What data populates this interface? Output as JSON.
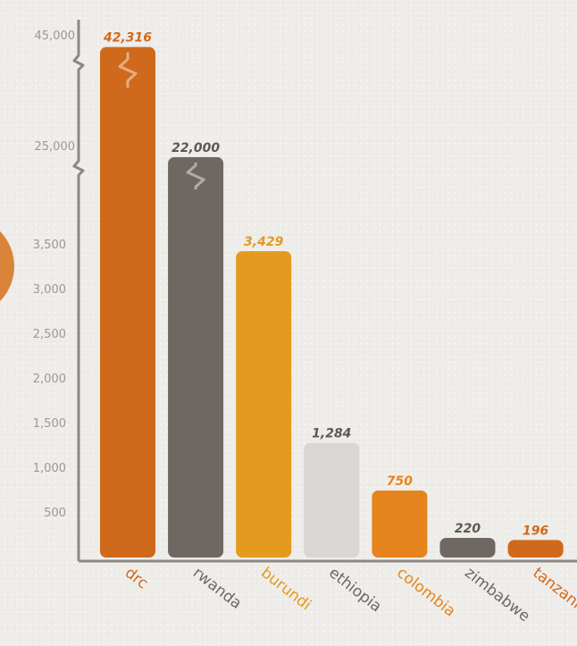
{
  "chart_data": {
    "type": "bar",
    "title": "",
    "xlabel": "",
    "ylabel": "",
    "categories": [
      "drc",
      "rwanda",
      "burundi",
      "ethiopia",
      "colombia",
      "zimbabwe",
      "tanzania"
    ],
    "values": [
      42316,
      22000,
      3429,
      1284,
      750,
      220,
      196
    ],
    "value_labels": [
      "42,316",
      "22,000",
      "3,429",
      "1,284",
      "750",
      "220",
      "196"
    ],
    "category_colors": [
      "#cf6a1c",
      "#6f6761",
      "#e39b1f",
      "#d9d7d4",
      "#e5841c",
      "#6f6761",
      "#cf6a1c"
    ],
    "value_label_colors": [
      "#cf6a1c",
      "#5f5853",
      "#e39b1f",
      "#5f5853",
      "#e5841c",
      "#5f5853",
      "#cf6a1c"
    ],
    "category_label_colors": [
      "#cf6a1c",
      "#6f6761",
      "#e39b1f",
      "#6f6761",
      "#e5841c",
      "#6f6761",
      "#cf6a1c"
    ],
    "y_ticks_lower": [
      "500",
      "1,000",
      "1,500",
      "2,000",
      "2,500",
      "3,000",
      "3,500"
    ],
    "y_ticks_upper": [
      "25,000",
      "45,000"
    ],
    "ylim": [
      0,
      45000
    ],
    "axis_break": true,
    "grid": false,
    "legend": "none"
  }
}
